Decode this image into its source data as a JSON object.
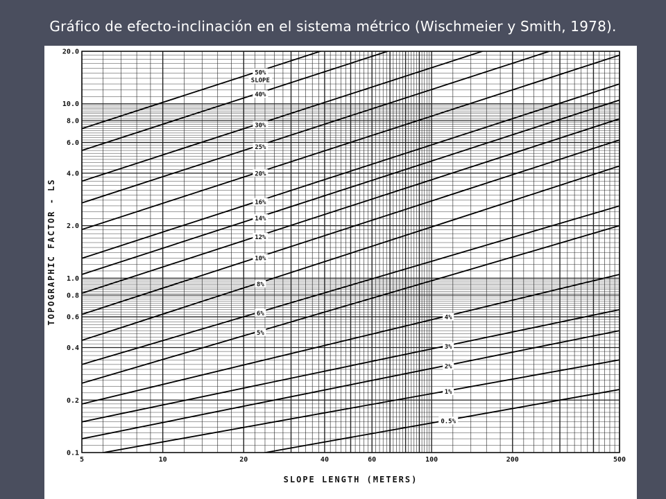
{
  "slide": {
    "title": "Gráfico de efecto-inclinación en el sistema métrico (Wischmeier y Smith, 1978).",
    "background_color": "#4a4e5e"
  },
  "chart_data": {
    "type": "line",
    "title": "",
    "xlabel": "SLOPE LENGTH (METERS)",
    "ylabel": "TOPOGRAPHIC FACTOR - LS",
    "x_scale": "log",
    "y_scale": "log",
    "xlim": [
      5,
      500
    ],
    "ylim": [
      0.1,
      20
    ],
    "grid": true,
    "x_tick_labels": [
      {
        "value": 5,
        "label": "5"
      },
      {
        "value": 10,
        "label": "10"
      },
      {
        "value": 20,
        "label": "20"
      },
      {
        "value": 40,
        "label": "40"
      },
      {
        "value": 60,
        "label": "60"
      },
      {
        "value": 100,
        "label": "100"
      },
      {
        "value": 200,
        "label": "200"
      },
      {
        "value": 500,
        "label": "500"
      }
    ],
    "y_tick_labels": [
      {
        "value": 20,
        "label": "20.0"
      },
      {
        "value": 10,
        "label": "10.0"
      },
      {
        "value": 8,
        "label": "8.0"
      },
      {
        "value": 6,
        "label": "6.0"
      },
      {
        "value": 4,
        "label": "4.0"
      },
      {
        "value": 2,
        "label": "2.0"
      },
      {
        "value": 1,
        "label": "1.0"
      },
      {
        "value": 0.8,
        "label": "0.8"
      },
      {
        "value": 0.6,
        "label": "0.6"
      },
      {
        "value": 0.4,
        "label": "0.4"
      },
      {
        "value": 0.2,
        "label": "0.2"
      },
      {
        "value": 0.1,
        "label": "0.1"
      }
    ],
    "series": [
      {
        "name": "50%",
        "x": [
          5,
          500
        ],
        "y": [
          7.2,
          72.0
        ]
      },
      {
        "name": "40%",
        "x": [
          5,
          500
        ],
        "y": [
          5.4,
          54.0
        ]
      },
      {
        "name": "30%",
        "x": [
          5,
          500
        ],
        "y": [
          3.6,
          36.0
        ]
      },
      {
        "name": "25%",
        "x": [
          5,
          500
        ],
        "y": [
          2.7,
          27.0
        ]
      },
      {
        "name": "20%",
        "x": [
          5,
          500
        ],
        "y": [
          1.9,
          19.0
        ]
      },
      {
        "name": "16%",
        "x": [
          5,
          500
        ],
        "y": [
          1.3,
          13.0
        ]
      },
      {
        "name": "14%",
        "x": [
          5,
          500
        ],
        "y": [
          1.05,
          10.5
        ]
      },
      {
        "name": "12%",
        "x": [
          5,
          500
        ],
        "y": [
          0.82,
          8.2
        ]
      },
      {
        "name": "10%",
        "x": [
          5,
          500
        ],
        "y": [
          0.62,
          6.2
        ]
      },
      {
        "name": "8%",
        "x": [
          5,
          500
        ],
        "y": [
          0.44,
          4.4
        ]
      },
      {
        "name": "6%",
        "x": [
          5,
          500
        ],
        "y": [
          0.32,
          2.6
        ]
      },
      {
        "name": "5%",
        "x": [
          5,
          500
        ],
        "y": [
          0.25,
          2.0
        ]
      },
      {
        "name": "4%",
        "x": [
          5,
          500
        ],
        "y": [
          0.19,
          1.05
        ]
      },
      {
        "name": "3%",
        "x": [
          5,
          500
        ],
        "y": [
          0.15,
          0.66
        ]
      },
      {
        "name": "2%",
        "x": [
          5,
          500
        ],
        "y": [
          0.12,
          0.5
        ]
      },
      {
        "name": "1%",
        "x": [
          5,
          500
        ],
        "y": [
          0.095,
          0.34
        ]
      },
      {
        "name": "0.5%",
        "x": [
          5,
          500
        ],
        "y": [
          0.065,
          0.23
        ]
      }
    ],
    "annotations": [
      {
        "text": "50%",
        "series": "50%",
        "x": 22
      },
      {
        "text": "SLOPE",
        "series": "50%",
        "x": 22
      },
      {
        "text": "40%",
        "series": "40%",
        "x": 22
      },
      {
        "text": "30%",
        "series": "30%",
        "x": 22
      },
      {
        "text": "25%",
        "series": "25%",
        "x": 22
      },
      {
        "text": "20%",
        "series": "20%",
        "x": 22
      },
      {
        "text": "16%",
        "series": "16%",
        "x": 22
      },
      {
        "text": "14%",
        "series": "14%",
        "x": 22
      },
      {
        "text": "12%",
        "series": "12%",
        "x": 22
      },
      {
        "text": "10%",
        "series": "10%",
        "x": 22
      },
      {
        "text": "8%",
        "series": "8%",
        "x": 22
      },
      {
        "text": "6%",
        "series": "6%",
        "x": 22
      },
      {
        "text": "5%",
        "series": "5%",
        "x": 22
      },
      {
        "text": "4%",
        "series": "4%",
        "x": 110
      },
      {
        "text": "3%",
        "series": "3%",
        "x": 110
      },
      {
        "text": "2%",
        "series": "2%",
        "x": 110
      },
      {
        "text": "1%",
        "series": "1%",
        "x": 110
      },
      {
        "text": "0.5%",
        "series": "0.5%",
        "x": 110
      }
    ]
  }
}
